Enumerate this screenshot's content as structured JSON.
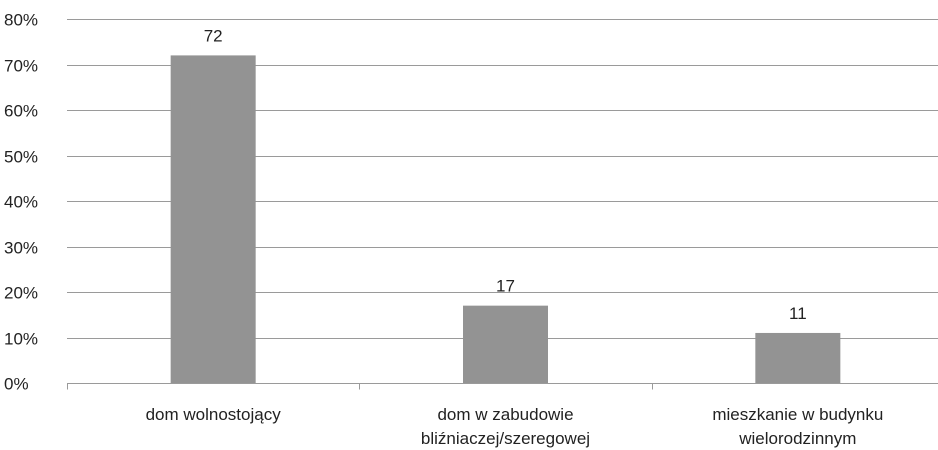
{
  "chart_data": {
    "type": "bar",
    "categories": [
      [
        "dom wolnostojący"
      ],
      [
        "dom w zabudowie",
        "bliźniaczej/szeregowej"
      ],
      [
        "mieszkanie w budynku",
        "wielorodzinnym"
      ]
    ],
    "values": [
      72,
      17,
      11
    ],
    "data_labels": [
      "72",
      "17",
      "11"
    ],
    "ylim": [
      0,
      80
    ],
    "y_ticks": [
      0,
      10,
      20,
      30,
      40,
      50,
      60,
      70,
      80
    ],
    "y_tick_labels": [
      "0%",
      "10%",
      "20%",
      "30%",
      "40%",
      "50%",
      "60%",
      "70%",
      "80%"
    ],
    "grid": true,
    "legend": "none",
    "title": "",
    "xlabel": "",
    "ylabel": "",
    "bar_color": "#939393"
  }
}
